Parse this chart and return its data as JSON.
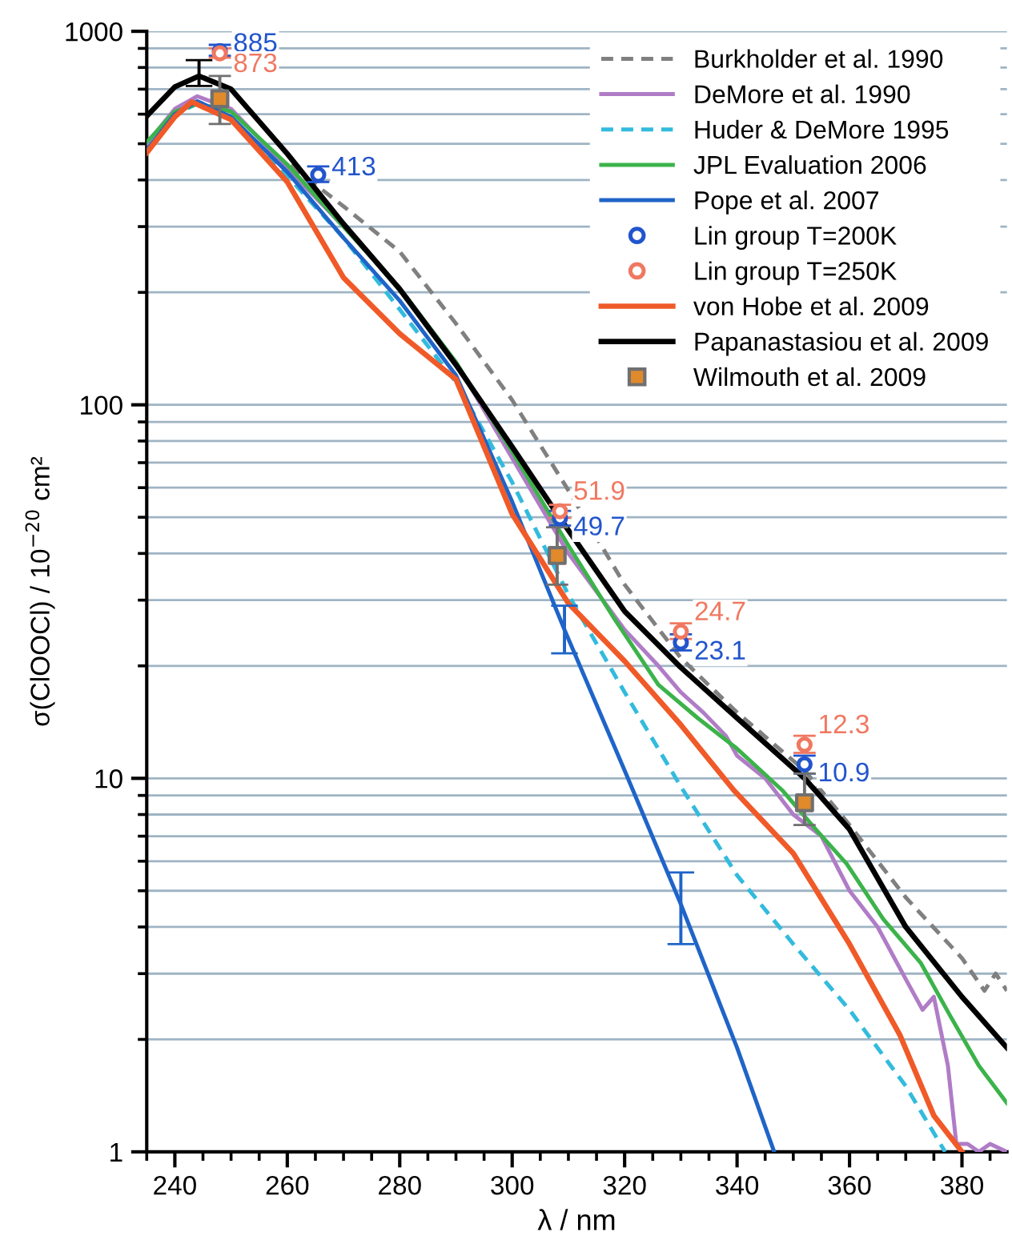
{
  "chart_data": {
    "type": "line",
    "xlabel": "λ / nm",
    "ylabel": "σ(ClOOCl) / 10$^{−20}$ cm²",
    "xlim": [
      235,
      388
    ],
    "ylim": [
      1,
      1000
    ],
    "log": "y",
    "xticks": [
      240,
      260,
      280,
      300,
      320,
      340,
      360,
      380
    ],
    "yticks": [
      1,
      10,
      100,
      1000
    ],
    "grid": "y",
    "legend": "top right",
    "series": [
      {
        "name": "Burkholder et al. 1990",
        "line_style": "dashed",
        "color": "#808080",
        "x": [
          260.6,
          270,
          280,
          290,
          300,
          310,
          320,
          330,
          340,
          352,
          360,
          370,
          380,
          384,
          386,
          388
        ],
        "values": [
          437,
          340,
          257,
          165,
          103,
          59,
          33,
          21,
          15,
          10.5,
          7.5,
          4.8,
          3.3,
          2.7,
          3.0,
          2.7
        ]
      },
      {
        "name": "DeMore et al. 1990",
        "line_style": "solid",
        "color": "#b07cc6",
        "x": [
          235,
          240,
          244,
          250,
          260,
          270,
          280,
          290,
          300,
          310,
          320,
          326,
          330,
          334,
          338,
          340,
          345,
          350,
          355,
          360,
          365,
          370,
          373,
          375,
          377.5,
          379,
          381,
          383,
          385,
          388
        ],
        "values": [
          500,
          620,
          670,
          620,
          430,
          300,
          205,
          130,
          72,
          40,
          25,
          20,
          17,
          15,
          13,
          11.5,
          10,
          8,
          7,
          5.0,
          4.0,
          2.9,
          2.4,
          2.6,
          1.7,
          1.05,
          1.05,
          1.0,
          1.05,
          1.0
        ]
      },
      {
        "name": "Huder & DeMore 1995",
        "line_style": "dashed",
        "color": "#33bbdd",
        "x": [
          235,
          240,
          244,
          250,
          260,
          270,
          280,
          290,
          300,
          310,
          320,
          330,
          340,
          350,
          360,
          370,
          377
        ],
        "values": [
          480,
          600,
          640,
          590,
          410,
          280,
          180,
          115,
          62,
          31,
          17,
          9.5,
          5.5,
          3.6,
          2.4,
          1.5,
          1.0
        ]
      },
      {
        "name": "JPL Evaluation 2006",
        "line_style": "solid",
        "color": "#3cb34a",
        "x": [
          235,
          240,
          244,
          250,
          260,
          270,
          280,
          290,
          300,
          310,
          318,
          326,
          333,
          340,
          348,
          354,
          359.5,
          366,
          372.7,
          378,
          383,
          388
        ],
        "values": [
          505,
          610,
          640,
          610,
          440,
          300,
          205,
          130,
          75,
          42,
          27,
          17.8,
          14.5,
          12,
          9.3,
          7.3,
          5.9,
          4.2,
          3.2,
          2.3,
          1.7,
          1.35
        ]
      },
      {
        "name": "Pope et al. 2007",
        "line_style": "solid",
        "color": "#1f64c8",
        "x": [
          235,
          240,
          244,
          250,
          260,
          270,
          280,
          290,
          300,
          309.3,
          320,
          330,
          340,
          346.6
        ],
        "values": [
          480,
          600,
          650,
          590,
          420,
          280,
          190,
          120,
          55,
          25,
          10.5,
          4.6,
          1.9,
          1.0
        ],
        "errors": [
          null,
          null,
          null,
          null,
          null,
          null,
          null,
          null,
          null,
          [
            21.6,
            29
          ],
          null,
          [
            3.6,
            5.6
          ],
          null,
          null
        ]
      },
      {
        "name": "Lin group T=200K",
        "type": "scatter",
        "marker": "circle",
        "color": "#2255cc",
        "data_labels": true,
        "x": [
          248,
          265.5,
          308.5,
          330,
          352
        ],
        "values": [
          885,
          413,
          49.7,
          23.1,
          10.9
        ],
        "errors": [
          [
            860,
            920
          ],
          [
            395,
            435
          ],
          [
            47.5,
            52
          ],
          [
            22,
            24.3
          ],
          [
            10.3,
            11.5
          ]
        ]
      },
      {
        "name": "Lin group T=250K",
        "type": "scatter",
        "marker": "circle",
        "color": "#f07860",
        "data_labels": true,
        "x": [
          248,
          308.5,
          330,
          352
        ],
        "values": [
          873,
          51.9,
          24.7,
          12.3
        ],
        "errors": [
          [
            850,
            900
          ],
          [
            49.8,
            54
          ],
          [
            23.6,
            26
          ],
          [
            11.7,
            13
          ]
        ]
      },
      {
        "name": "von Hobe et al. 2009",
        "line_style": "solid",
        "color": "#f05a28",
        "x": [
          235,
          240,
          243,
          250,
          260,
          270,
          280,
          290,
          300,
          310,
          320,
          330,
          339.4,
          350,
          360,
          369,
          375,
          380
        ],
        "values": [
          473,
          590,
          647,
          580,
          395,
          219,
          155,
          117,
          51,
          29.4,
          20.6,
          13.9,
          9.3,
          6.3,
          3.6,
          2.05,
          1.25,
          1.0
        ]
      },
      {
        "name": "Papanastasiou et al. 2009",
        "line_style": "solid",
        "color": "#000000",
        "x": [
          235,
          240,
          244.3,
          250,
          260,
          270,
          280,
          290,
          300.3,
          308,
          320,
          330,
          340,
          352,
          360,
          370,
          380,
          388
        ],
        "values": [
          593,
          710,
          759,
          700,
          470,
          305,
          204,
          128,
          76,
          51,
          28,
          19.8,
          14.5,
          10,
          7.3,
          4.0,
          2.6,
          1.9
        ],
        "errors": [
          null,
          null,
          [
            714,
            837
          ],
          null,
          null,
          null,
          null,
          null,
          null,
          null,
          null,
          null,
          null,
          null,
          null,
          null,
          null,
          null
        ]
      },
      {
        "name": "Wilmouth et al. 2009",
        "type": "scatter",
        "marker": "square",
        "color": "#e08a2c",
        "x": [
          248,
          308,
          352
        ],
        "values": [
          660,
          39.5,
          8.6
        ],
        "errors": [
          [
            565,
            759
          ],
          [
            33,
            47
          ],
          [
            7.5,
            10.3
          ]
        ]
      }
    ]
  }
}
